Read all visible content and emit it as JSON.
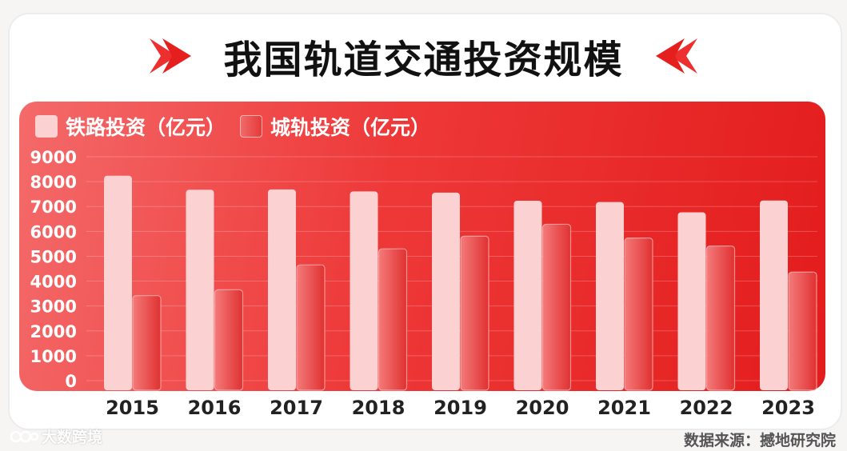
{
  "title": "我国轨道交通投资规模",
  "source": "数据来源：撼地研究院",
  "watermark_brand": "大数跨境",
  "colors": {
    "panel": "#ee3838",
    "rail_bar": "#fbd1d1",
    "metro_bar_light": "#f47a7a",
    "metro_bar_dark": "#e03131",
    "title_text": "#111111",
    "chevron": "#ee2f2f"
  },
  "icons": [
    "chevron-right-icon",
    "chevron-left-icon",
    "brand-logo-icon"
  ],
  "chart_data": {
    "type": "bar",
    "title": "我国轨道交通投资规模",
    "categories": [
      "2015",
      "2016",
      "2017",
      "2018",
      "2019",
      "2020",
      "2021",
      "2022",
      "2023"
    ],
    "series": [
      {
        "name": "铁路投资（亿元）",
        "values": [
          8238,
          7676,
          7687,
          7605,
          7556,
          7232,
          7180,
          6767,
          7240
        ]
      },
      {
        "name": "城轨投资（亿元）",
        "values": [
          3417,
          3653,
          4650,
          5297,
          5806,
          6286,
          5734,
          5412,
          4363
        ]
      }
    ],
    "yticks": [
      "0",
      "1000",
      "2000",
      "3000",
      "4000",
      "5000",
      "6000",
      "7000",
      "8000",
      "9000"
    ],
    "ylim": [
      0,
      9000
    ],
    "grid": true,
    "legend": "top-left"
  }
}
